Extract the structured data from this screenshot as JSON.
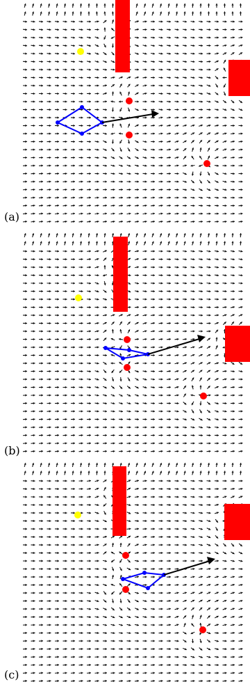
{
  "figure": {
    "panels": [
      {
        "label": "(a)",
        "obstacle_color": "#ff0000",
        "goal_color": "#ffff00",
        "formation_color": "#0000ff",
        "arrow_color": "#000000"
      },
      {
        "label": "(b)",
        "obstacle_color": "#ff0000",
        "goal_color": "#ffff00",
        "formation_color": "#0000ff",
        "arrow_color": "#000000"
      },
      {
        "label": "(c)",
        "obstacle_color": "#ff0000",
        "goal_color": "#ffff00",
        "formation_color": "#0000ff",
        "arrow_color": "#000000"
      }
    ]
  }
}
